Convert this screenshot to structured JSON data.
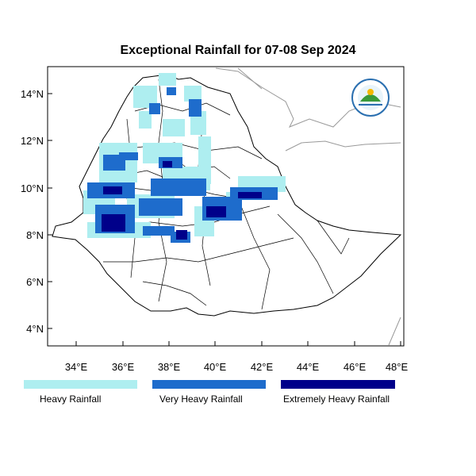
{
  "title": "Exceptional Rainfall for 07-08 Sep 2024",
  "y_ticks": [
    "14°N",
    "12°N",
    "10°N",
    "8°N",
    "6°N",
    "4°N"
  ],
  "x_ticks": [
    "34°E",
    "36°E",
    "38°E",
    "40°E",
    "42°E",
    "44°E",
    "46°E",
    "48°E"
  ],
  "legend": [
    {
      "label": "Heavy Rainfall",
      "color": "#aeeef0"
    },
    {
      "label": "Very Heavy Rainfall",
      "color": "#1e6ccc"
    },
    {
      "label": "Extremely Heavy Rainfall",
      "color": "#00008a"
    }
  ],
  "colors": {
    "heavy": "#aeeef0",
    "very_heavy": "#1e6ccc",
    "extreme": "#00008a",
    "border": "#000000",
    "neighbor_border": "#999999"
  },
  "logo": {
    "name": "Ethiopian Meteorology Institute emblem"
  }
}
